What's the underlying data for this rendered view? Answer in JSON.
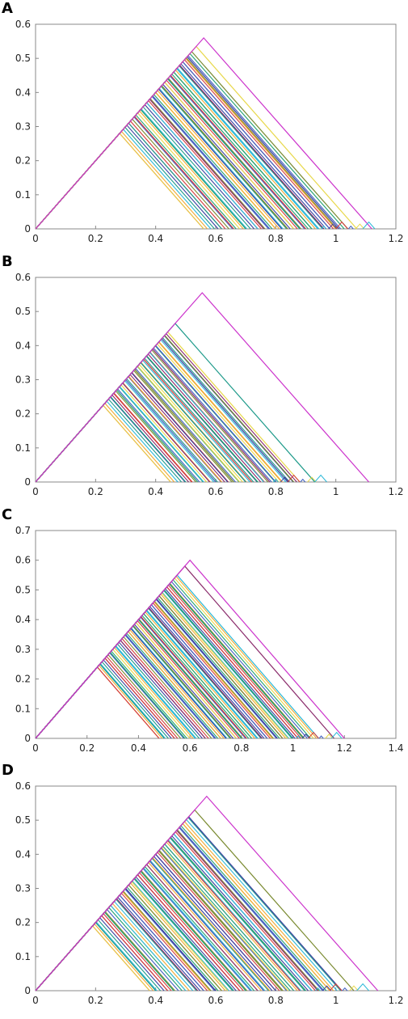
{
  "chart_data": [
    {
      "panel_label": "A",
      "type": "line",
      "xlim": [
        0,
        1.2
      ],
      "ylim": [
        0,
        0.6
      ],
      "xticks": [
        "0",
        "0.2",
        "0.4",
        "0.6",
        "0.8",
        "1",
        "1.2"
      ],
      "yticks": [
        "0",
        "0.1",
        "0.2",
        "0.3",
        "0.4",
        "0.5",
        "0.6"
      ],
      "grid": false,
      "legend": "none",
      "series_peaks": [
        0.28,
        0.31,
        0.33,
        0.35,
        0.37,
        0.38,
        0.39,
        0.4,
        0.41,
        0.42,
        0.43,
        0.44,
        0.45,
        0.46,
        0.47,
        0.48,
        0.49,
        0.5,
        0.505,
        0.52,
        0.535,
        0.56
      ],
      "extra_peaks": [
        0.4,
        0.42,
        0.44,
        0.46,
        0.48,
        0.5
      ]
    },
    {
      "panel_label": "B",
      "type": "line",
      "xlim": [
        0,
        1.2
      ],
      "ylim": [
        0,
        0.6
      ],
      "xticks": [
        "0",
        "0.2",
        "0.4",
        "0.6",
        "0.8",
        "1",
        "1.2"
      ],
      "yticks": [
        "0",
        "0.1",
        "0.2",
        "0.3",
        "0.4",
        "0.5",
        "0.6"
      ],
      "grid": false,
      "legend": "none",
      "series_peaks": [
        0.225,
        0.25,
        0.26,
        0.27,
        0.28,
        0.29,
        0.3,
        0.31,
        0.32,
        0.33,
        0.34,
        0.35,
        0.36,
        0.37,
        0.38,
        0.39,
        0.4,
        0.41,
        0.42,
        0.43,
        0.44,
        0.465,
        0.555
      ],
      "extra_peaks": [
        0.31,
        0.33,
        0.35,
        0.37
      ]
    },
    {
      "panel_label": "C",
      "type": "line",
      "xlim": [
        0,
        1.4
      ],
      "ylim": [
        0,
        0.7
      ],
      "xticks": [
        "0",
        "0.2",
        "0.4",
        "0.6",
        "0.8",
        "1",
        "1.2",
        "1.4"
      ],
      "yticks": [
        "0",
        "0.1",
        "0.2",
        "0.3",
        "0.4",
        "0.5",
        "0.6",
        "0.7"
      ],
      "grid": false,
      "legend": "none",
      "series_peaks": [
        0.24,
        0.25,
        0.27,
        0.29,
        0.31,
        0.33,
        0.35,
        0.36,
        0.37,
        0.38,
        0.39,
        0.4,
        0.41,
        0.42,
        0.43,
        0.44,
        0.45,
        0.46,
        0.47,
        0.48,
        0.49,
        0.5,
        0.51,
        0.52,
        0.55,
        0.58,
        0.6
      ],
      "extra_peaks": [
        0.36,
        0.4,
        0.44,
        0.48
      ]
    },
    {
      "panel_label": "D",
      "type": "line",
      "xlim": [
        0,
        1.2
      ],
      "ylim": [
        0,
        0.6
      ],
      "xticks": [
        "0",
        "0.2",
        "0.4",
        "0.6",
        "0.8",
        "1",
        "1.2"
      ],
      "yticks": [
        "0",
        "0.1",
        "0.2",
        "0.3",
        "0.4",
        "0.5",
        "0.6"
      ],
      "grid": false,
      "legend": "none",
      "series_peaks": [
        0.19,
        0.2,
        0.22,
        0.23,
        0.25,
        0.27,
        0.28,
        0.29,
        0.3,
        0.31,
        0.32,
        0.33,
        0.34,
        0.35,
        0.36,
        0.37,
        0.38,
        0.39,
        0.4,
        0.41,
        0.42,
        0.43,
        0.44,
        0.45,
        0.46,
        0.47,
        0.48,
        0.49,
        0.51,
        0.53,
        0.57
      ],
      "extra_peaks": [
        0.3,
        0.34,
        0.38,
        0.42,
        0.46
      ]
    }
  ],
  "palette": [
    "#e8d84a",
    "#f0a830",
    "#2bb8d8",
    "#1e9a8a",
    "#3a3f9f",
    "#8a2b6b",
    "#d43b3b",
    "#7a8a30",
    "#4060c0",
    "#20a070"
  ],
  "envelope_color": "#cc33cc",
  "first_colors": [
    "#e8c04a",
    "#e8c04a",
    "#d43b3b",
    "#e8c04a"
  ],
  "axis_color": "#888888"
}
